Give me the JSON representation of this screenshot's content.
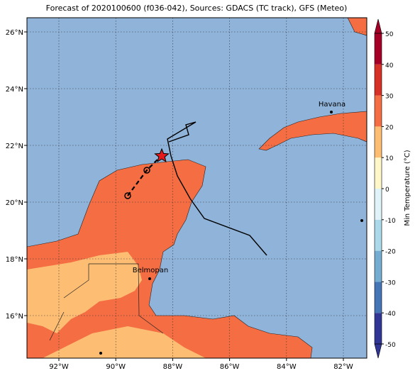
{
  "title": "Forecast of 2020100600 (f036-042), Sources: GDACS (TC track), GFS (Meteo)",
  "map": {
    "ocean_color": "#8fb3d9",
    "lon_ticks": [
      "92°W",
      "90°W",
      "88°W",
      "86°W",
      "84°W",
      "82°W"
    ],
    "lat_ticks": [
      "26°N",
      "24°N",
      "22°N",
      "20°N",
      "18°N",
      "16°N"
    ],
    "cities": [
      "Havana",
      "Belmopan"
    ]
  },
  "colorbar": {
    "label": "Min Temperature (°C)",
    "lim": [
      -50,
      50
    ],
    "ticks": [
      50,
      40,
      30,
      20,
      10,
      0,
      -10,
      -20,
      -30,
      -40,
      -50
    ],
    "colors": [
      "#313695",
      "#4575b4",
      "#74add1",
      "#abd9e9",
      "#e0f3f8",
      "#fff7c8",
      "#fdbe74",
      "#f46d43",
      "#d73027",
      "#a50026"
    ]
  }
}
